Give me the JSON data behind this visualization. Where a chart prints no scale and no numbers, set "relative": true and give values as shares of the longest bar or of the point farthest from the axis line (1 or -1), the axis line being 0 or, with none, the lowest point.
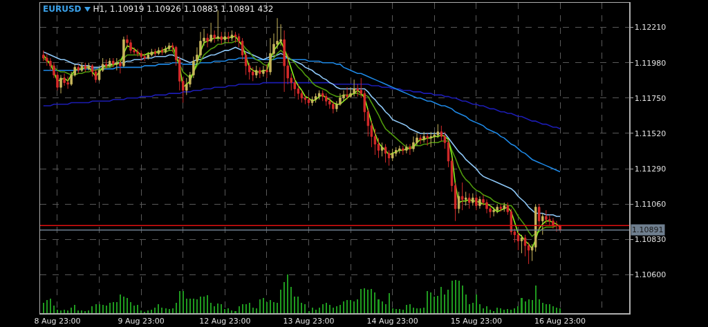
{
  "chart_data": [
    {
      "type": "candlestick",
      "title": "EURUSD",
      "subtitle": "H1, 1.10919 1.10926 1.10883 1.10891 432",
      "categories": [
        null,
        null,
        null,
        null,
        "8 Aug 23:00",
        null,
        null,
        null,
        null,
        null,
        null,
        null,
        null,
        null,
        null,
        null,
        null,
        null,
        null,
        null,
        null,
        null,
        null,
        null,
        null,
        null,
        null,
        null,
        "9 Aug 23:00",
        null,
        null,
        null,
        null,
        null,
        null,
        null,
        null,
        null,
        null,
        null,
        null,
        null,
        null,
        null,
        null,
        null,
        null,
        null,
        null,
        null,
        null,
        null,
        "12 Aug 23:00",
        null,
        null,
        null,
        null,
        null,
        null,
        null,
        null,
        null,
        null,
        null,
        null,
        null,
        null,
        null,
        null,
        null,
        null,
        null,
        null,
        null,
        null,
        null,
        "13 Aug 23:00",
        null,
        null,
        null,
        null,
        null,
        null,
        null,
        null,
        null,
        null,
        null,
        null,
        null,
        null,
        null,
        null,
        null,
        null,
        null,
        null,
        null,
        null,
        null,
        "14 Aug 23:00",
        null,
        null,
        null,
        null,
        null,
        null,
        null,
        null,
        null,
        null,
        null,
        null,
        null,
        null,
        null,
        null,
        null,
        null,
        null,
        null,
        null,
        null,
        null,
        "15 Aug 23:00",
        null,
        null,
        null,
        null,
        null,
        null,
        null,
        null,
        null,
        null,
        null,
        null,
        null,
        null,
        null,
        null,
        null,
        null,
        null,
        null,
        null,
        null,
        null,
        "16 Aug 23:00"
      ],
      "ohlc": [
        [
          1.1203,
          1.1206,
          1.1199,
          1.1201
        ],
        [
          1.1201,
          1.1204,
          1.1196,
          1.1199
        ],
        [
          1.1199,
          1.1201,
          1.1193,
          1.1196
        ],
        [
          1.1196,
          1.1198,
          1.1188,
          1.119
        ],
        [
          1.119,
          1.1192,
          1.118,
          1.1182
        ],
        [
          1.1182,
          1.119,
          1.1178,
          1.1188
        ],
        [
          1.1188,
          1.1191,
          1.1183,
          1.1185
        ],
        [
          1.1185,
          1.1189,
          1.1181,
          1.1184
        ],
        [
          1.1184,
          1.1192,
          1.1183,
          1.119
        ],
        [
          1.119,
          1.1197,
          1.1189,
          1.1195
        ],
        [
          1.1195,
          1.1197,
          1.1191,
          1.1193
        ],
        [
          1.1193,
          1.1198,
          1.1192,
          1.1196
        ],
        [
          1.1196,
          1.1198,
          1.1192,
          1.1194
        ],
        [
          1.1194,
          1.1198,
          1.1193,
          1.1196
        ],
        [
          1.1196,
          1.1197,
          1.1189,
          1.1192
        ],
        [
          1.1192,
          1.1194,
          1.1185,
          1.1187
        ],
        [
          1.1187,
          1.1195,
          1.1186,
          1.1193
        ],
        [
          1.1193,
          1.1201,
          1.1192,
          1.1197
        ],
        [
          1.1197,
          1.12,
          1.1194,
          1.1196
        ],
        [
          1.1196,
          1.1201,
          1.1195,
          1.1199
        ],
        [
          1.1199,
          1.1201,
          1.1195,
          1.1197
        ],
        [
          1.1197,
          1.1201,
          1.1193,
          1.1198
        ],
        [
          1.1198,
          1.12,
          1.1191,
          1.1196
        ],
        [
          1.1196,
          1.1215,
          1.1195,
          1.1213
        ],
        [
          1.1213,
          1.1216,
          1.1208,
          1.1211
        ],
        [
          1.1211,
          1.1213,
          1.1204,
          1.1206
        ],
        [
          1.1206,
          1.1208,
          1.1203,
          1.1205
        ],
        [
          1.1205,
          1.1207,
          1.1202,
          1.1204
        ],
        [
          1.1204,
          1.1206,
          1.1199,
          1.1202
        ],
        [
          1.1202,
          1.1204,
          1.1199,
          1.1201
        ],
        [
          1.1201,
          1.1205,
          1.12,
          1.1203
        ],
        [
          1.1203,
          1.1207,
          1.1202,
          1.1205
        ],
        [
          1.1205,
          1.1207,
          1.1202,
          1.1204
        ],
        [
          1.1204,
          1.1208,
          1.1203,
          1.1206
        ],
        [
          1.1206,
          1.1208,
          1.1203,
          1.1205
        ],
        [
          1.1205,
          1.1209,
          1.1204,
          1.1207
        ],
        [
          1.1207,
          1.1211,
          1.1206,
          1.1209
        ],
        [
          1.1209,
          1.1211,
          1.1205,
          1.1208
        ],
        [
          1.1208,
          1.1209,
          1.1196,
          1.12
        ],
        [
          1.12,
          1.1202,
          1.118,
          1.1186
        ],
        [
          1.1186,
          1.1189,
          1.1172,
          1.118
        ],
        [
          1.118,
          1.1188,
          1.1177,
          1.1184
        ],
        [
          1.1184,
          1.1192,
          1.1182,
          1.119
        ],
        [
          1.119,
          1.1202,
          1.1188,
          1.1199
        ],
        [
          1.1199,
          1.1208,
          1.1197,
          1.1203
        ],
        [
          1.1203,
          1.1218,
          1.1201,
          1.1212
        ],
        [
          1.1212,
          1.122,
          1.1209,
          1.1214
        ],
        [
          1.1214,
          1.1217,
          1.1208,
          1.1212
        ],
        [
          1.1212,
          1.1224,
          1.1211,
          1.1216
        ],
        [
          1.1216,
          1.1219,
          1.1211,
          1.1214
        ],
        [
          1.1214,
          1.1232,
          1.1212,
          1.1215
        ],
        [
          1.1215,
          1.1218,
          1.121,
          1.1213
        ],
        [
          1.1213,
          1.1218,
          1.1211,
          1.1215
        ],
        [
          1.1215,
          1.1218,
          1.1211,
          1.1214
        ],
        [
          1.1214,
          1.1219,
          1.1212,
          1.1216
        ],
        [
          1.1216,
          1.1218,
          1.1211,
          1.1215
        ],
        [
          1.1215,
          1.1217,
          1.1208,
          1.1212
        ],
        [
          1.1212,
          1.1214,
          1.12,
          1.1203
        ],
        [
          1.1203,
          1.1205,
          1.119,
          1.1196
        ],
        [
          1.1196,
          1.1198,
          1.1187,
          1.1192
        ],
        [
          1.1192,
          1.1195,
          1.1186,
          1.119
        ],
        [
          1.119,
          1.1196,
          1.1188,
          1.1193
        ],
        [
          1.1193,
          1.1195,
          1.1188,
          1.1191
        ],
        [
          1.1191,
          1.1196,
          1.1189,
          1.1193
        ],
        [
          1.1193,
          1.1197,
          1.1188,
          1.1192
        ],
        [
          1.1192,
          1.1214,
          1.119,
          1.1204
        ],
        [
          1.1204,
          1.1217,
          1.1202,
          1.121
        ],
        [
          1.121,
          1.1227,
          1.1207,
          1.1212
        ],
        [
          1.1212,
          1.1223,
          1.1209,
          1.1213
        ],
        [
          1.1213,
          1.1219,
          1.1179,
          1.1196
        ],
        [
          1.1196,
          1.1204,
          1.1184,
          1.1188
        ],
        [
          1.1188,
          1.1191,
          1.118,
          1.1185
        ],
        [
          1.1185,
          1.1188,
          1.1176,
          1.1181
        ],
        [
          1.1181,
          1.1184,
          1.1174,
          1.1178
        ],
        [
          1.1178,
          1.118,
          1.1172,
          1.1175
        ],
        [
          1.1175,
          1.1177,
          1.1171,
          1.1174
        ],
        [
          1.1174,
          1.1176,
          1.117,
          1.1172
        ],
        [
          1.1172,
          1.1176,
          1.117,
          1.1174
        ],
        [
          1.1174,
          1.1178,
          1.1172,
          1.1176
        ],
        [
          1.1176,
          1.118,
          1.1174,
          1.1178
        ],
        [
          1.1178,
          1.118,
          1.1173,
          1.1176
        ],
        [
          1.1176,
          1.1178,
          1.117,
          1.1173
        ],
        [
          1.1173,
          1.1175,
          1.1168,
          1.1171
        ],
        [
          1.1171,
          1.1173,
          1.1165,
          1.1168
        ],
        [
          1.1168,
          1.1173,
          1.1166,
          1.1171
        ],
        [
          1.1171,
          1.1178,
          1.117,
          1.1175
        ],
        [
          1.1175,
          1.118,
          1.1173,
          1.1177
        ],
        [
          1.1177,
          1.1182,
          1.1174,
          1.1176
        ],
        [
          1.1176,
          1.1182,
          1.1175,
          1.1178
        ],
        [
          1.1178,
          1.1187,
          1.1176,
          1.1181
        ],
        [
          1.1181,
          1.1184,
          1.1176,
          1.118
        ],
        [
          1.118,
          1.1188,
          1.1175,
          1.1178
        ],
        [
          1.1178,
          1.118,
          1.116,
          1.1166
        ],
        [
          1.1166,
          1.1168,
          1.115,
          1.1157
        ],
        [
          1.1157,
          1.116,
          1.1143,
          1.115
        ],
        [
          1.115,
          1.1155,
          1.1138,
          1.1145
        ],
        [
          1.1145,
          1.1149,
          1.1136,
          1.1141
        ],
        [
          1.1141,
          1.1146,
          1.1137,
          1.1143
        ],
        [
          1.1143,
          1.1145,
          1.1133,
          1.1139
        ],
        [
          1.1139,
          1.1141,
          1.1131,
          1.1136
        ],
        [
          1.1136,
          1.1142,
          1.1134,
          1.1139
        ],
        [
          1.1139,
          1.1143,
          1.1137,
          1.1141
        ],
        [
          1.1141,
          1.1144,
          1.1139,
          1.1142
        ],
        [
          1.1142,
          1.1144,
          1.1138,
          1.1141
        ],
        [
          1.1141,
          1.1145,
          1.1139,
          1.1143
        ],
        [
          1.1143,
          1.1145,
          1.1138,
          1.1142
        ],
        [
          1.1142,
          1.115,
          1.114,
          1.1146
        ],
        [
          1.1146,
          1.1152,
          1.1144,
          1.1149
        ],
        [
          1.1149,
          1.1151,
          1.1145,
          1.1148
        ],
        [
          1.1148,
          1.1153,
          1.1146,
          1.115
        ],
        [
          1.115,
          1.1152,
          1.1144,
          1.1149
        ],
        [
          1.1149,
          1.1153,
          1.1143,
          1.115
        ],
        [
          1.115,
          1.1153,
          1.1146,
          1.1151
        ],
        [
          1.1151,
          1.1158,
          1.1149,
          1.1153
        ],
        [
          1.1153,
          1.1157,
          1.1147,
          1.115
        ],
        [
          1.115,
          1.1153,
          1.1142,
          1.1146
        ],
        [
          1.1146,
          1.1148,
          1.113,
          1.1134
        ],
        [
          1.1134,
          1.1136,
          1.1114,
          1.1118
        ],
        [
          1.1118,
          1.112,
          1.1095,
          1.1103
        ],
        [
          1.1103,
          1.1114,
          1.11,
          1.1111
        ],
        [
          1.1111,
          1.112,
          1.1102,
          1.1109
        ],
        [
          1.1109,
          1.1114,
          1.1105,
          1.111
        ],
        [
          1.111,
          1.1113,
          1.1103,
          1.1107
        ],
        [
          1.1107,
          1.1113,
          1.1105,
          1.111
        ],
        [
          1.111,
          1.1112,
          1.1102,
          1.1105
        ],
        [
          1.1105,
          1.1111,
          1.1103,
          1.1109
        ],
        [
          1.1109,
          1.1112,
          1.1105,
          1.1107
        ],
        [
          1.1107,
          1.1109,
          1.11,
          1.1103
        ],
        [
          1.1103,
          1.1105,
          1.1097,
          1.1101
        ],
        [
          1.1101,
          1.1104,
          1.1098,
          1.1102
        ],
        [
          1.1102,
          1.1106,
          1.11,
          1.1104
        ],
        [
          1.1104,
          1.1106,
          1.1101,
          1.1103
        ],
        [
          1.1103,
          1.1107,
          1.1101,
          1.1105
        ],
        [
          1.1105,
          1.1107,
          1.1099,
          1.1101
        ],
        [
          1.1101,
          1.1103,
          1.1086,
          1.1088
        ],
        [
          1.1088,
          1.109,
          1.1081,
          1.1086
        ],
        [
          1.1086,
          1.1088,
          1.1076,
          1.1082
        ],
        [
          1.1082,
          1.1086,
          1.1074,
          1.1084
        ],
        [
          1.1084,
          1.1086,
          1.1072,
          1.1079
        ],
        [
          1.1079,
          1.1081,
          1.1067,
          1.1076
        ],
        [
          1.1076,
          1.108,
          1.1069,
          1.1078
        ],
        [
          1.1078,
          1.1106,
          1.1075,
          1.1104
        ],
        [
          1.1104,
          1.1106,
          1.109,
          1.1095
        ],
        [
          1.1095,
          1.11,
          1.1086,
          1.1098
        ],
        [
          1.1098,
          1.1102,
          1.1093,
          1.1096
        ],
        [
          1.1096,
          1.1099,
          1.1092,
          1.1095
        ],
        [
          1.1095,
          1.1097,
          1.109,
          1.1092
        ],
        [
          1.1092,
          1.1095,
          1.1088,
          1.1092
        ],
        [
          1.10919,
          1.10926,
          1.10883,
          1.10891
        ]
      ],
      "series": [
        {
          "type": "line",
          "color": "#1c1cb4",
          "values": [
            1.117,
            1.117,
            1.117,
            1.1171,
            1.1171,
            1.1171,
            1.1171,
            1.1171,
            1.1172,
            1.1172,
            1.1172,
            1.1172,
            1.1172,
            1.1172,
            1.1173,
            1.1173,
            1.1173,
            1.1173,
            1.1173,
            1.1173,
            1.1174,
            1.1174,
            1.1174,
            1.1174,
            1.1175,
            1.1175,
            1.1175,
            1.1175,
            1.1176,
            1.1176,
            1.1176,
            1.1176,
            1.1177,
            1.1177,
            1.1177,
            1.1177,
            1.1178,
            1.1178,
            1.1178,
            1.1178,
            1.1179,
            1.1179,
            1.1179,
            1.118,
            1.118,
            1.118,
            1.1181,
            1.1181,
            1.1181,
            1.1182,
            1.1182,
            1.1182,
            1.1182,
            1.1183,
            1.1183,
            1.1183,
            1.1184,
            1.1184,
            1.1184,
            1.1184,
            1.1184,
            1.1184,
            1.1184,
            1.1185,
            1.1185,
            1.1185,
            1.1185,
            1.1185,
            1.1185,
            1.1185,
            1.1185,
            1.1185,
            1.1185,
            1.1185,
            1.1185,
            1.1185,
            1.1185,
            1.1185,
            1.1185,
            1.1185,
            1.1185,
            1.1185,
            1.1185,
            1.1184,
            1.1184,
            1.1184,
            1.1184,
            1.1184,
            1.1184,
            1.1184,
            1.1184,
            1.1184,
            1.1184,
            1.1184,
            1.1183,
            1.1183,
            1.1183,
            1.1182,
            1.1182,
            1.1182,
            1.1181,
            1.1181,
            1.1181,
            1.118,
            1.118,
            1.118,
            1.1179,
            1.1179,
            1.1179,
            1.1178,
            1.1178,
            1.1178,
            1.1177,
            1.1177,
            1.1177,
            1.1176,
            1.1176,
            1.1175,
            1.1175,
            1.1174,
            1.1173,
            1.1173,
            1.1172,
            1.1171,
            1.1171,
            1.117,
            1.117,
            1.1169,
            1.1168,
            1.1168,
            1.1167,
            1.1166,
            1.1166,
            1.1165,
            1.1165,
            1.1164,
            1.1163,
            1.1163,
            1.1162,
            1.1161,
            1.116,
            1.116,
            1.1159,
            1.1158,
            1.1158,
            1.1157,
            1.1156,
            1.1156,
            1.1155
          ]
        },
        {
          "type": "line",
          "color": "#1e88e5",
          "values": [
            1.1193,
            1.1193,
            1.1193,
            1.1193,
            1.1193,
            1.1193,
            1.1193,
            1.1193,
            1.1193,
            1.1193,
            1.1193,
            1.1194,
            1.1194,
            1.1194,
            1.1194,
            1.1194,
            1.1194,
            1.1194,
            1.1194,
            1.1194,
            1.1194,
            1.1195,
            1.1195,
            1.1195,
            1.1195,
            1.1195,
            1.1195,
            1.1195,
            1.1195,
            1.1196,
            1.1196,
            1.1196,
            1.1196,
            1.1197,
            1.1197,
            1.1197,
            1.1197,
            1.1198,
            1.1198,
            1.1198,
            1.1197,
            1.1197,
            1.1197,
            1.1197,
            1.1197,
            1.1198,
            1.1198,
            1.1198,
            1.1198,
            1.1199,
            1.1199,
            1.1199,
            1.1199,
            1.12,
            1.12,
            1.12,
            1.1201,
            1.1201,
            1.1201,
            1.1201,
            1.1201,
            1.12,
            1.12,
            1.12,
            1.12,
            1.12,
            1.12,
            1.1201,
            1.1201,
            1.1201,
            1.1201,
            1.12,
            1.12,
            1.12,
            1.12,
            1.12,
            1.1199,
            1.1199,
            1.1199,
            1.1199,
            1.1198,
            1.1198,
            1.1198,
            1.1198,
            1.1197,
            1.1197,
            1.1195,
            1.1194,
            1.1193,
            1.1192,
            1.1191,
            1.1191,
            1.119,
            1.1189,
            1.1188,
            1.1187,
            1.1186,
            1.1185,
            1.1184,
            1.1183,
            1.1182,
            1.1181,
            1.118,
            1.1179,
            1.1178,
            1.1177,
            1.1176,
            1.1175,
            1.1175,
            1.1174,
            1.1173,
            1.1173,
            1.1172,
            1.1171,
            1.117,
            1.117,
            1.1169,
            1.1168,
            1.1166,
            1.1165,
            1.1164,
            1.1163,
            1.1161,
            1.116,
            1.1159,
            1.1158,
            1.1157,
            1.1155,
            1.1154,
            1.1153,
            1.1152,
            1.115,
            1.1149,
            1.1147,
            1.1145,
            1.1144,
            1.1142,
            1.114,
            1.1139,
            1.1137,
            1.1135,
            1.1134,
            1.1133,
            1.1132,
            1.1131,
            1.113,
            1.1129,
            1.1128,
            1.1127
          ]
        },
        {
          "type": "line",
          "color": "#8ec8f8",
          "values": [
            1.1205,
            1.1204,
            1.1203,
            1.1202,
            1.1201,
            1.12,
            1.12,
            1.1199,
            1.1198,
            1.1197,
            1.1197,
            1.1196,
            1.1196,
            1.1196,
            1.1195,
            1.1195,
            1.1195,
            1.1196,
            1.1196,
            1.1197,
            1.1197,
            1.1198,
            1.1198,
            1.1198,
            1.1199,
            1.1199,
            1.12,
            1.12,
            1.12,
            1.1201,
            1.1201,
            1.1201,
            1.1202,
            1.1202,
            1.1202,
            1.1202,
            1.1203,
            1.1203,
            1.1202,
            1.1201,
            1.12,
            1.1199,
            1.1198,
            1.1199,
            1.12,
            1.12,
            1.1201,
            1.1202,
            1.1203,
            1.1203,
            1.1204,
            1.1205,
            1.1206,
            1.1206,
            1.1207,
            1.1208,
            1.1207,
            1.1206,
            1.1205,
            1.1204,
            1.1203,
            1.1202,
            1.1201,
            1.12,
            1.1201,
            1.1202,
            1.1202,
            1.1203,
            1.1204,
            1.1203,
            1.1201,
            1.12,
            1.1199,
            1.1198,
            1.1197,
            1.1195,
            1.1194,
            1.1193,
            1.1191,
            1.119,
            1.1188,
            1.1187,
            1.1185,
            1.1184,
            1.1182,
            1.1181,
            1.1181,
            1.1181,
            1.1181,
            1.1181,
            1.1181,
            1.1181,
            1.1181,
            1.1179,
            1.1176,
            1.1174,
            1.1171,
            1.1169,
            1.1166,
            1.1164,
            1.1161,
            1.116,
            1.1159,
            1.1158,
            1.1157,
            1.1155,
            1.1154,
            1.1153,
            1.1152,
            1.1152,
            1.1152,
            1.1152,
            1.1152,
            1.1152,
            1.1152,
            1.1152,
            1.1149,
            1.1146,
            1.1143,
            1.114,
            1.1138,
            1.1135,
            1.1133,
            1.1131,
            1.1129,
            1.1126,
            1.1124,
            1.1123,
            1.1122,
            1.1121,
            1.112,
            1.1119,
            1.1118,
            1.1117,
            1.1116,
            1.1114,
            1.1111,
            1.1109,
            1.1107,
            1.1104,
            1.1102,
            1.11,
            1.11,
            1.11,
            1.1099,
            1.1099,
            1.1099,
            1.1098,
            1.1098
          ]
        },
        {
          "type": "line",
          "color": "#4f9a0c",
          "values": [
            1.1201,
            1.1199,
            1.1197,
            1.1195,
            1.1193,
            1.1192,
            1.1192,
            1.1191,
            1.119,
            1.119,
            1.1191,
            1.1191,
            1.1192,
            1.1192,
            1.1193,
            1.1193,
            1.1194,
            1.1194,
            1.1195,
            1.1195,
            1.1196,
            1.1198,
            1.12,
            1.1201,
            1.1203,
            1.1203,
            1.1203,
            1.1203,
            1.1203,
            1.1203,
            1.1204,
            1.1204,
            1.1204,
            1.1205,
            1.1205,
            1.1205,
            1.1206,
            1.1206,
            1.1201,
            1.1197,
            1.1192,
            1.119,
            1.1188,
            1.1192,
            1.1196,
            1.1199,
            1.1203,
            1.1205,
            1.1207,
            1.1208,
            1.121,
            1.121,
            1.1211,
            1.1211,
            1.1211,
            1.1212,
            1.1212,
            1.121,
            1.1207,
            1.1205,
            1.1202,
            1.12,
            1.1199,
            1.1197,
            1.1196,
            1.1199,
            1.1201,
            1.1204,
            1.1206,
            1.1204,
            1.1202,
            1.12,
            1.1198,
            1.1195,
            1.1193,
            1.119,
            1.1188,
            1.1185,
            1.1183,
            1.1182,
            1.1181,
            1.118,
            1.1178,
            1.1177,
            1.1176,
            1.1176,
            1.1177,
            1.1177,
            1.1177,
            1.1178,
            1.1178,
            1.1177,
            1.1177,
            1.1176,
            1.1172,
            1.1168,
            1.1164,
            1.1159,
            1.1155,
            1.1153,
            1.1151,
            1.1149,
            1.1147,
            1.1145,
            1.1143,
            1.1143,
            1.1144,
            1.1144,
            1.1144,
            1.1145,
            1.1145,
            1.1146,
            1.1146,
            1.1146,
            1.1147,
            1.1147,
            1.1147,
            1.1141,
            1.1136,
            1.113,
            1.1125,
            1.1122,
            1.112,
            1.1117,
            1.1115,
            1.1114,
            1.1112,
            1.1111,
            1.111,
            1.1108,
            1.1107,
            1.1106,
            1.1106,
            1.1105,
            1.1105,
            1.1102,
            1.1098,
            1.1095,
            1.1092,
            1.1088,
            1.1085,
            1.1087,
            1.1088,
            1.109,
            1.1091,
            1.1091,
            1.1091,
            1.1092,
            1.1092
          ]
        },
        {
          "type": "line",
          "color": "#8af51c",
          "values": [
            1.1203,
            1.12,
            1.1197,
            1.1192,
            1.1186,
            1.1187,
            1.1188,
            1.1186,
            1.119,
            1.1193,
            1.1194,
            1.1194,
            1.1195,
            1.1195,
            1.1192,
            1.1189,
            1.1192,
            1.1195,
            1.1196,
            1.1196,
            1.1197,
            1.1197,
            1.1198,
            1.1204,
            1.1209,
            1.1208,
            1.1207,
            1.1205,
            1.1203,
            1.1203,
            1.1204,
            1.1204,
            1.1205,
            1.1205,
            1.1206,
            1.1207,
            1.1208,
            1.1209,
            1.1203,
            1.1196,
            1.1182,
            1.1184,
            1.1186,
            1.1192,
            1.1198,
            1.1205,
            1.1211,
            1.1212,
            1.1213,
            1.1214,
            1.1214,
            1.1214,
            1.1214,
            1.1214,
            1.1215,
            1.1215,
            1.1212,
            1.1209,
            1.1202,
            1.1195,
            1.1193,
            1.1192,
            1.1192,
            1.1193,
            1.1193,
            1.12,
            1.1206,
            1.1209,
            1.1212,
            1.1207,
            1.1201,
            1.1194,
            1.1187,
            1.1183,
            1.118,
            1.1176,
            1.1175,
            1.1173,
            1.1174,
            1.1176,
            1.1177,
            1.1175,
            1.1174,
            1.1172,
            1.1171,
            1.1171,
            1.1173,
            1.1175,
            1.1177,
            1.1178,
            1.118,
            1.1178,
            1.1175,
            1.1167,
            1.1159,
            1.1152,
            1.1146,
            1.1143,
            1.1141,
            1.1138,
            1.1139,
            1.114,
            1.1141,
            1.1141,
            1.1142,
            1.1142,
            1.1143,
            1.1146,
            1.1148,
            1.1148,
            1.1149,
            1.1149,
            1.115,
            1.115,
            1.1151,
            1.115,
            1.1148,
            1.1138,
            1.1119,
            1.1107,
            1.1108,
            1.1108,
            1.1109,
            1.1108,
            1.1108,
            1.1107,
            1.1106,
            1.1106,
            1.1105,
            1.1103,
            1.1101,
            1.1102,
            1.1103,
            1.1104,
            1.1101,
            1.1094,
            1.1087,
            1.1085,
            1.1082,
            1.108,
            1.1077,
            1.1083,
            1.109,
            1.1093,
            1.1095,
            1.1095,
            1.1094,
            1.1093,
            1.1091
          ]
        }
      ],
      "ylim": [
        1.1035,
        1.1237
      ],
      "yticks": [
        {
          "value": 1.106,
          "label": "1.10600"
        },
        {
          "value": 1.1083,
          "label": "1.10830"
        },
        {
          "value": 1.1106,
          "label": "1.11060"
        },
        {
          "value": 1.1129,
          "label": "1.11290"
        },
        {
          "value": 1.1152,
          "label": "1.11520"
        },
        {
          "value": 1.1175,
          "label": "1.11750"
        },
        {
          "value": 1.1198,
          "label": "1.11980"
        },
        {
          "value": 1.1221,
          "label": "1.12210"
        }
      ],
      "grid": true,
      "ref_lines": [
        {
          "axis": "y",
          "value": 1.1092,
          "color": "#e01010"
        },
        {
          "axis": "y",
          "value": 1.10891,
          "label": "1.10891",
          "color": "#6f7f8f"
        }
      ]
    },
    {
      "type": "bar",
      "relative": true,
      "color": "#1f9a1f",
      "categories": [
        null,
        null,
        null,
        null,
        null,
        null,
        null,
        null,
        null,
        null,
        null,
        null,
        null,
        null,
        null,
        null,
        null,
        null,
        null,
        null,
        null,
        null,
        null,
        null,
        null,
        null,
        null,
        null,
        null,
        null,
        null,
        null,
        null,
        null,
        null,
        null,
        null,
        null,
        null,
        null,
        null,
        null,
        null,
        null,
        null,
        null,
        null,
        null,
        null,
        null,
        null,
        null,
        null,
        null,
        null,
        null,
        null,
        null,
        null,
        null,
        null,
        null,
        null,
        null,
        null,
        null,
        null,
        null,
        null,
        null,
        null,
        null,
        null,
        null,
        null,
        null,
        null,
        null,
        null,
        null,
        null,
        null,
        null,
        null,
        null,
        null,
        null,
        null,
        null,
        null,
        null,
        null,
        null,
        null,
        null,
        null,
        null,
        null,
        null,
        null,
        null,
        null,
        null,
        null,
        null,
        null,
        null,
        null,
        null,
        null,
        null,
        null,
        null,
        null,
        null,
        null,
        null,
        null,
        null,
        null,
        null,
        null,
        null,
        null,
        null,
        null,
        null,
        null,
        null,
        null,
        null,
        null,
        null,
        null,
        null,
        null,
        null,
        null,
        null,
        null,
        null,
        null,
        null,
        null,
        null,
        null,
        null,
        null,
        null
      ],
      "values": [
        0.27,
        0.33,
        0.37,
        0.19,
        0.09,
        0.07,
        0.09,
        0.07,
        0.15,
        0.21,
        0.07,
        0.07,
        0.05,
        0.07,
        0.17,
        0.24,
        0.23,
        0.21,
        0.19,
        0.26,
        0.28,
        0.28,
        0.48,
        0.43,
        0.39,
        0.29,
        0.19,
        0.21,
        0.07,
        0.03,
        0.07,
        0.09,
        0.15,
        0.24,
        0.15,
        0.12,
        0.11,
        0.12,
        0.27,
        0.57,
        0.57,
        0.37,
        0.37,
        0.37,
        0.35,
        0.42,
        0.42,
        0.46,
        0.27,
        0.17,
        0.25,
        0.24,
        0.11,
        0.12,
        0.07,
        0.06,
        0.18,
        0.24,
        0.24,
        0.27,
        0.15,
        0.12,
        0.36,
        0.39,
        0.29,
        0.33,
        0.29,
        0.27,
        0.6,
        0.8,
        1,
        0.68,
        0.42,
        0.42,
        0.27,
        0.24,
        0.06,
        0.15,
        0.09,
        0.15,
        0.24,
        0.27,
        0.21,
        0.15,
        0.17,
        0.21,
        0.3,
        0.33,
        0.33,
        0.3,
        0.36,
        0.63,
        0.65,
        0.6,
        0.63,
        0.54,
        0.35,
        0.31,
        0.24,
        0.51,
        0.12,
        0.11,
        0.11,
        0.09,
        0.21,
        0.24,
        0.15,
        0.13,
        0.12,
        0.15,
        0.57,
        0.54,
        0.42,
        0.45,
        0.68,
        0.48,
        0.6,
        0.83,
        0.86,
        0.83,
        0.71,
        0.48,
        0.24,
        0.27,
        0.48,
        0.24,
        0.12,
        0.18,
        0.09,
        0.06,
        0.15,
        0.12,
        0.09,
        0.11,
        0.09,
        0.12,
        0.17,
        0.39,
        0.3,
        0.36,
        0.33,
        0.71,
        0.36,
        0.27,
        0.24,
        0.23,
        0.18,
        0.15,
        0.12
      ]
    }
  ]
}
